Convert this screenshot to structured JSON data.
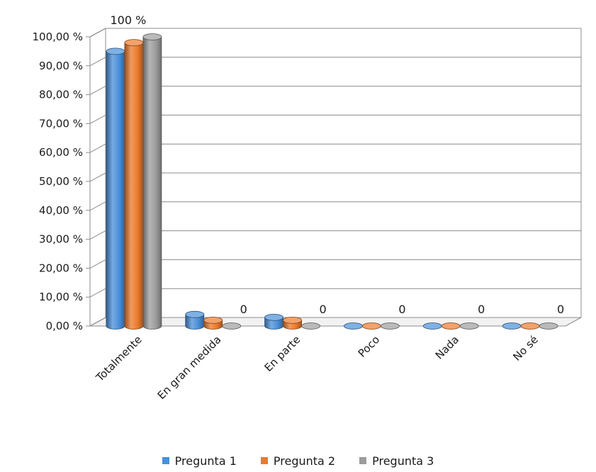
{
  "chart_data": {
    "type": "bar",
    "categories": [
      "Totalmente",
      "En gran medida",
      "En parte",
      "Poco",
      "Nada",
      "No sé"
    ],
    "series": [
      {
        "name": "Pregunta 1",
        "color": "#4a8fd9",
        "values": [
          95,
          4,
          3,
          0,
          0,
          0
        ]
      },
      {
        "name": "Pregunta 2",
        "color": "#ec7a2a",
        "values": [
          98,
          2,
          2,
          0,
          0,
          0
        ]
      },
      {
        "name": "Pregunta 3",
        "color": "#9c9c9c",
        "values": [
          100,
          0,
          0,
          0,
          0,
          0
        ]
      }
    ],
    "y_ticks": [
      "0,00 %",
      "10,00 %",
      "20,00 %",
      "30,00 %",
      "40,00 %",
      "50,00 %",
      "60,00 %",
      "70,00 %",
      "80,00 %",
      "90,00 %",
      "100,00 %"
    ],
    "ylim": [
      0,
      100
    ],
    "data_labels": [
      "100 %",
      "0",
      "0",
      "0",
      "0",
      "0"
    ],
    "grid": true,
    "legend_position": "bottom",
    "style": "3d-cylinder"
  }
}
